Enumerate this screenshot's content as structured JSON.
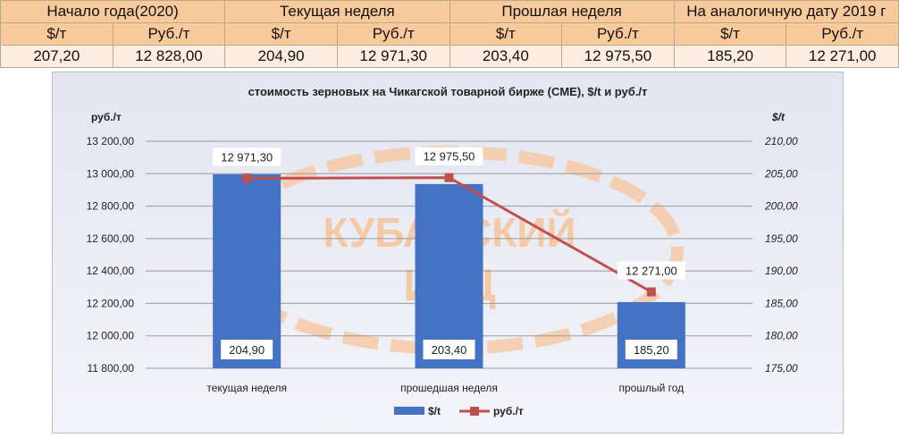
{
  "table": {
    "headers": [
      "Начало года(2020)",
      "Текущая неделя",
      "Прошлая неделя",
      "На аналогичную дату 2019 г"
    ],
    "units": [
      "$/т",
      "Руб./т",
      "$/т",
      "Руб./т",
      "$/т",
      "Руб./т",
      "$/т",
      "Руб./т"
    ],
    "values": [
      "207,20",
      "12 828,00",
      "204,90",
      "12 971,30",
      "203,40",
      "12 975,50",
      "185,20",
      "12 271,00"
    ]
  },
  "chart_data": {
    "type": "bar",
    "title": "стоимость зерновых на Чикагской товарной бирже (CME), $/t и руб./т",
    "categories": [
      "текущая неделя",
      "прошедшая неделя",
      "прошлый год"
    ],
    "y_left": {
      "label": "руб./т",
      "range": [
        11800,
        13200
      ],
      "ticks": [
        "11 800,00",
        "12 000,00",
        "12 200,00",
        "12 400,00",
        "12 600,00",
        "12 800,00",
        "13 000,00",
        "13 200,00"
      ]
    },
    "y_right": {
      "label": "$/t",
      "range": [
        175,
        210
      ],
      "ticks": [
        "175,00",
        "180,00",
        "185,00",
        "190,00",
        "195,00",
        "200,00",
        "205,00",
        "210,00"
      ]
    },
    "series": [
      {
        "name": "$/t",
        "kind": "bar",
        "axis": "right",
        "values": [
          204.9,
          203.4,
          185.2
        ],
        "labels": [
          "204,90",
          "203,40",
          "185,20"
        ],
        "color": "#4472c4"
      },
      {
        "name": "руб./т",
        "kind": "line",
        "axis": "left",
        "values": [
          12971.3,
          12975.5,
          12271.0
        ],
        "labels": [
          "12 971,30",
          "12 975,50",
          "12 271,00"
        ],
        "color": "#c0504d"
      }
    ],
    "grid": true,
    "legend": "bottom",
    "watermark": {
      "line1": "КУБАНСКИЙ",
      "line2": "ИКЦ",
      "color": "#f4c9a6"
    }
  }
}
